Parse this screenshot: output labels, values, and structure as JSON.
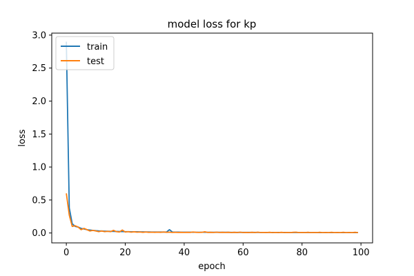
{
  "chart_data": {
    "type": "line",
    "title": "model loss for kp",
    "xlabel": "epoch",
    "ylabel": "loss",
    "xlim": [
      -4.95,
      103.95
    ],
    "ylim": [
      -0.15,
      3.03
    ],
    "xticks": [
      0,
      20,
      40,
      60,
      80,
      100
    ],
    "yticks": [
      0.0,
      0.5,
      1.0,
      1.5,
      2.0,
      2.5,
      3.0
    ],
    "xtick_labels": [
      "0",
      "20",
      "40",
      "60",
      "80",
      "100"
    ],
    "ytick_labels": [
      "0.0",
      "0.5",
      "1.0",
      "1.5",
      "2.0",
      "2.5",
      "3.0"
    ],
    "grid": false,
    "legend_position": "upper-left",
    "legend": [
      {
        "label": "train",
        "color": "#1f77b4"
      },
      {
        "label": "test",
        "color": "#ff7f0e"
      }
    ],
    "x": [
      0,
      1,
      2,
      3,
      4,
      5,
      6,
      7,
      8,
      9,
      10,
      11,
      12,
      13,
      14,
      15,
      16,
      17,
      18,
      19,
      20,
      21,
      22,
      23,
      24,
      25,
      26,
      27,
      28,
      29,
      30,
      31,
      32,
      33,
      34,
      35,
      36,
      37,
      38,
      39,
      40,
      41,
      42,
      43,
      44,
      45,
      46,
      47,
      48,
      49,
      50,
      51,
      52,
      53,
      54,
      55,
      56,
      57,
      58,
      59,
      60,
      61,
      62,
      63,
      64,
      65,
      66,
      67,
      68,
      69,
      70,
      71,
      72,
      73,
      74,
      75,
      76,
      77,
      78,
      79,
      80,
      81,
      82,
      83,
      84,
      85,
      86,
      87,
      88,
      89,
      90,
      91,
      92,
      93,
      94,
      95,
      96,
      97,
      98,
      99
    ],
    "series": [
      {
        "name": "train",
        "color": "#1f77b4",
        "values": [
          2.9,
          0.38,
          0.14,
          0.1,
          0.09,
          0.07,
          0.06,
          0.05,
          0.045,
          0.04,
          0.035,
          0.032,
          0.03,
          0.028,
          0.026,
          0.025,
          0.024,
          0.023,
          0.022,
          0.021,
          0.02,
          0.02,
          0.019,
          0.018,
          0.018,
          0.017,
          0.017,
          0.016,
          0.016,
          0.015,
          0.015,
          0.015,
          0.014,
          0.014,
          0.014,
          0.05,
          0.014,
          0.013,
          0.013,
          0.012,
          0.012,
          0.012,
          0.012,
          0.011,
          0.011,
          0.011,
          0.011,
          0.011,
          0.01,
          0.01,
          0.01,
          0.01,
          0.01,
          0.01,
          0.01,
          0.01,
          0.009,
          0.009,
          0.009,
          0.009,
          0.009,
          0.009,
          0.009,
          0.009,
          0.009,
          0.008,
          0.008,
          0.008,
          0.008,
          0.008,
          0.008,
          0.008,
          0.008,
          0.008,
          0.008,
          0.007,
          0.007,
          0.007,
          0.007,
          0.007,
          0.007,
          0.007,
          0.007,
          0.007,
          0.007,
          0.007,
          0.006,
          0.006,
          0.006,
          0.006,
          0.006,
          0.006,
          0.006,
          0.006,
          0.006,
          0.006,
          0.006,
          0.006,
          0.006,
          0.006
        ]
      },
      {
        "name": "test",
        "color": "#ff7f0e",
        "values": [
          0.6,
          0.27,
          0.1,
          0.11,
          0.09,
          0.05,
          0.07,
          0.05,
          0.03,
          0.04,
          0.03,
          0.02,
          0.03,
          0.02,
          0.025,
          0.02,
          0.04,
          0.02,
          0.015,
          0.045,
          0.015,
          0.02,
          0.012,
          0.018,
          0.012,
          0.015,
          0.01,
          0.015,
          0.01,
          0.012,
          0.01,
          0.012,
          0.01,
          0.015,
          0.01,
          0.012,
          0.008,
          0.01,
          0.008,
          0.01,
          0.008,
          0.01,
          0.008,
          0.015,
          0.01,
          0.008,
          0.01,
          0.018,
          0.008,
          0.01,
          0.008,
          0.012,
          0.008,
          0.01,
          0.008,
          0.01,
          0.007,
          0.01,
          0.007,
          0.012,
          0.007,
          0.008,
          0.007,
          0.01,
          0.007,
          0.012,
          0.007,
          0.008,
          0.007,
          0.01,
          0.006,
          0.008,
          0.006,
          0.01,
          0.006,
          0.008,
          0.006,
          0.01,
          0.012,
          0.006,
          0.008,
          0.006,
          0.01,
          0.006,
          0.008,
          0.006,
          0.01,
          0.006,
          0.008,
          0.006,
          0.01,
          0.006,
          0.008,
          0.006,
          0.01,
          0.006,
          0.008,
          0.006,
          0.01,
          0.006
        ]
      }
    ]
  }
}
